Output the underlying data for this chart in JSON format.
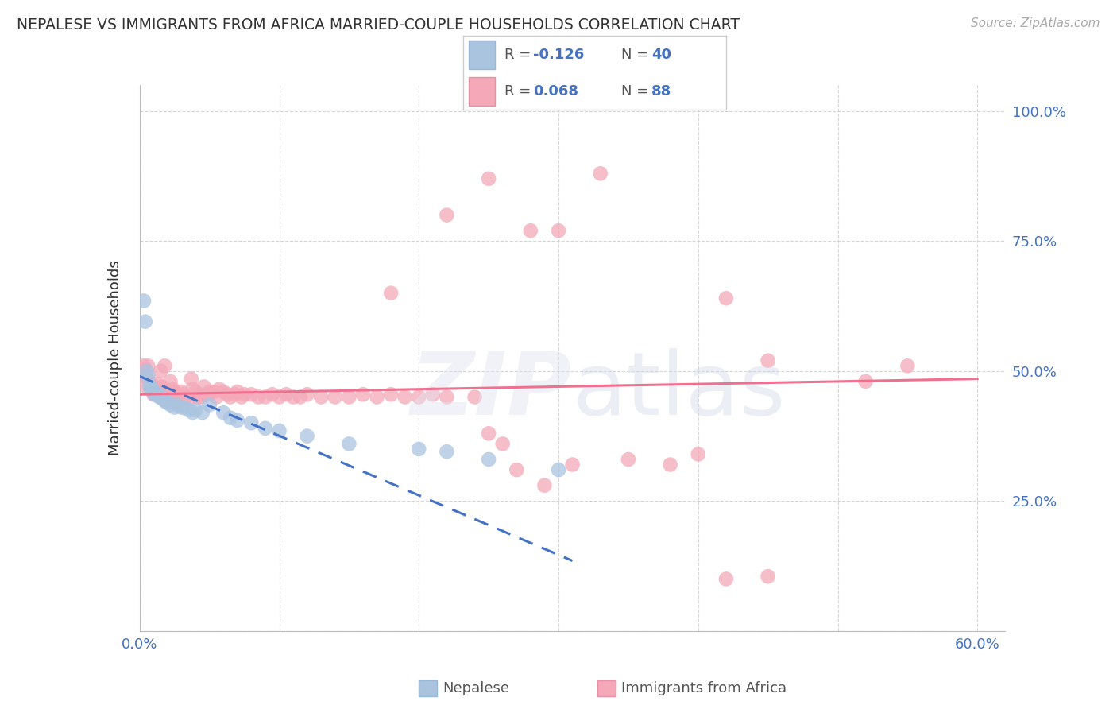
{
  "title": "NEPALESE VS IMMIGRANTS FROM AFRICA MARRIED-COUPLE HOUSEHOLDS CORRELATION CHART",
  "source": "Source: ZipAtlas.com",
  "ylabel": "Married-couple Households",
  "nepalese_R": "-0.126",
  "nepalese_N": "40",
  "africa_R": "0.068",
  "africa_N": "88",
  "nepalese_color": "#aac4e0",
  "africa_color": "#f4a8b8",
  "nepalese_line_color": "#4472c4",
  "africa_line_color": "#f07090",
  "bg_color": "#ffffff",
  "grid_color": "#cccccc",
  "xlim": [
    0.0,
    0.62
  ],
  "ylim": [
    0.0,
    1.05
  ],
  "x_ticks": [
    0.0,
    0.1,
    0.2,
    0.3,
    0.4,
    0.5,
    0.6
  ],
  "x_ticklabels": [
    "0.0%",
    "",
    "",
    "",
    "",
    "",
    "60.0%"
  ],
  "y_ticks": [
    0.0,
    0.25,
    0.5,
    0.75,
    1.0
  ],
  "y_ticklabels_right": [
    "",
    "25.0%",
    "50.0%",
    "75.0%",
    "100.0%"
  ],
  "nepalese_x": [
    0.003,
    0.004,
    0.005,
    0.006,
    0.007,
    0.008,
    0.009,
    0.01,
    0.011,
    0.012,
    0.013,
    0.014,
    0.015,
    0.016,
    0.017,
    0.018,
    0.019,
    0.02,
    0.022,
    0.025,
    0.027,
    0.03,
    0.032,
    0.035,
    0.038,
    0.04,
    0.045,
    0.05,
    0.06,
    0.065,
    0.07,
    0.08,
    0.09,
    0.1,
    0.12,
    0.15,
    0.2,
    0.22,
    0.25,
    0.3
  ],
  "nepalese_y": [
    0.635,
    0.595,
    0.5,
    0.49,
    0.47,
    0.47,
    0.465,
    0.46,
    0.455,
    0.455,
    0.455,
    0.45,
    0.45,
    0.45,
    0.445,
    0.445,
    0.44,
    0.44,
    0.435,
    0.43,
    0.435,
    0.43,
    0.43,
    0.425,
    0.42,
    0.425,
    0.42,
    0.435,
    0.42,
    0.41,
    0.405,
    0.4,
    0.39,
    0.385,
    0.375,
    0.36,
    0.35,
    0.345,
    0.33,
    0.31
  ],
  "africa_x": [
    0.002,
    0.003,
    0.004,
    0.005,
    0.006,
    0.007,
    0.008,
    0.009,
    0.01,
    0.011,
    0.012,
    0.013,
    0.014,
    0.015,
    0.016,
    0.017,
    0.018,
    0.019,
    0.02,
    0.021,
    0.022,
    0.024,
    0.025,
    0.026,
    0.027,
    0.028,
    0.03,
    0.031,
    0.033,
    0.035,
    0.037,
    0.038,
    0.04,
    0.042,
    0.044,
    0.046,
    0.048,
    0.05,
    0.053,
    0.055,
    0.057,
    0.06,
    0.063,
    0.065,
    0.068,
    0.07,
    0.073,
    0.075,
    0.08,
    0.085,
    0.09,
    0.095,
    0.1,
    0.105,
    0.11,
    0.115,
    0.12,
    0.13,
    0.14,
    0.15,
    0.16,
    0.17,
    0.18,
    0.19,
    0.2,
    0.21,
    0.22,
    0.24,
    0.25,
    0.26,
    0.18,
    0.22,
    0.25,
    0.28,
    0.3,
    0.33,
    0.42,
    0.45,
    0.55,
    0.27,
    0.29,
    0.31,
    0.35,
    0.38,
    0.4,
    0.42,
    0.45,
    0.52
  ],
  "africa_y": [
    0.5,
    0.51,
    0.49,
    0.47,
    0.51,
    0.48,
    0.475,
    0.465,
    0.455,
    0.455,
    0.46,
    0.475,
    0.465,
    0.5,
    0.47,
    0.455,
    0.51,
    0.465,
    0.46,
    0.45,
    0.48,
    0.465,
    0.46,
    0.455,
    0.45,
    0.45,
    0.46,
    0.455,
    0.45,
    0.445,
    0.485,
    0.465,
    0.46,
    0.45,
    0.45,
    0.47,
    0.455,
    0.46,
    0.46,
    0.45,
    0.465,
    0.46,
    0.455,
    0.45,
    0.455,
    0.46,
    0.45,
    0.455,
    0.455,
    0.45,
    0.45,
    0.455,
    0.45,
    0.455,
    0.45,
    0.45,
    0.455,
    0.45,
    0.45,
    0.45,
    0.455,
    0.45,
    0.455,
    0.45,
    0.45,
    0.455,
    0.45,
    0.45,
    0.38,
    0.36,
    0.65,
    0.8,
    0.87,
    0.77,
    0.77,
    0.88,
    0.64,
    0.52,
    0.51,
    0.31,
    0.28,
    0.32,
    0.33,
    0.32,
    0.34,
    0.1,
    0.105,
    0.48
  ],
  "nepalese_trend_x": [
    0.0,
    0.31
  ],
  "nepalese_trend_y_start": 0.49,
  "nepalese_trend_y_end": 0.135,
  "africa_trend_x": [
    0.0,
    0.6
  ],
  "africa_trend_y_start": 0.455,
  "africa_trend_y_end": 0.485
}
